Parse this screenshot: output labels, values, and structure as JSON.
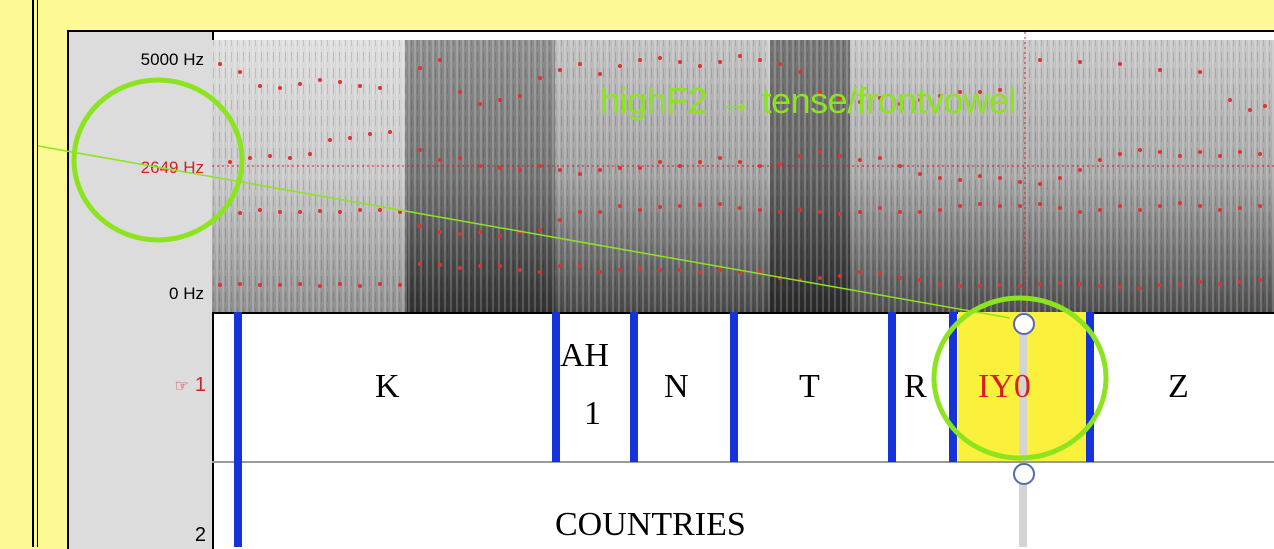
{
  "axis": {
    "top_freq": "5000 Hz",
    "cursor_freq": "2649 Hz",
    "bottom_freq": "0 Hz"
  },
  "annotation": {
    "text": "highF2 → tense/frontvowel",
    "color": "#8BE41E"
  },
  "tiers": [
    {
      "number": "1",
      "pointer_icon": "pointing-hand-icon",
      "active": true
    },
    {
      "number": "2",
      "active": false
    }
  ],
  "segments": [
    {
      "label": "K"
    },
    {
      "label": "AH"
    },
    {
      "label": "1"
    },
    {
      "label": "N"
    },
    {
      "label": "T"
    },
    {
      "label": "R"
    },
    {
      "label": "IY0",
      "selected": true
    },
    {
      "label": "Z"
    }
  ],
  "word_tier": {
    "label": "COUNTRIES"
  },
  "colors": {
    "background": "#FDFA96",
    "boundary": "#1533D9",
    "selected_interval": "#FBF03C",
    "selected_text": "#D32020",
    "cursor_freq_text": "#D32020",
    "formant_dots": "#E0332A",
    "annotation_circles": "#8BE41E"
  }
}
